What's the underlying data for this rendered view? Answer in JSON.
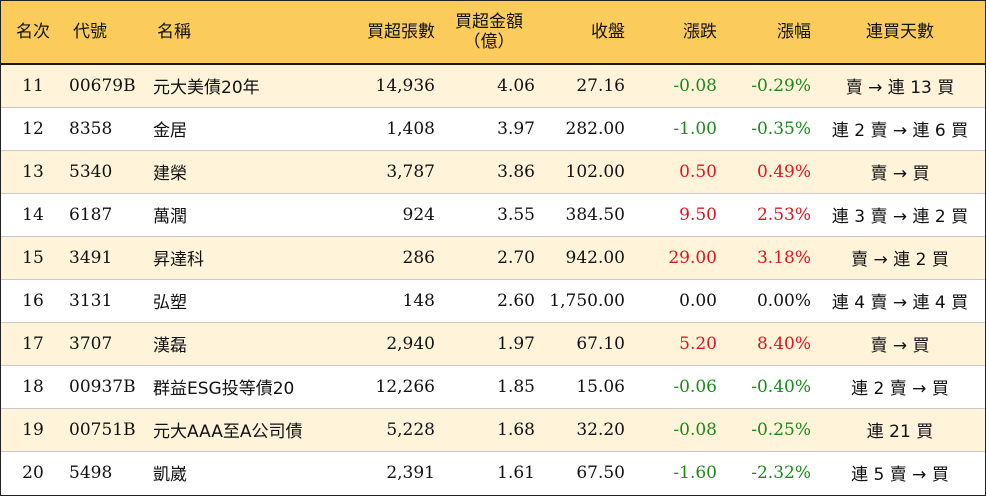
{
  "headers": {
    "rank": "名次",
    "code": "代號",
    "name": "名稱",
    "net_buy_lots": "買超張數",
    "net_buy_amount_line1": "買超金額",
    "net_buy_amount_line2": "（億）",
    "close": "收盤",
    "change": "漲跌",
    "change_pct": "漲幅",
    "consecutive_days": "連買天數"
  },
  "colors": {
    "header_bg": "#fbcc5c",
    "stripe_bg": "#fff4d9",
    "up": "#e0141e",
    "down": "#1a8a1a"
  },
  "rows": [
    {
      "rank": "11",
      "code": "00679B",
      "name": "元大美債20年",
      "lots": "14,936",
      "amount": "4.06",
      "close": "27.16",
      "change": "-0.08",
      "pct": "-0.29%",
      "days": "賣 → 連 13 買",
      "dir": "neg"
    },
    {
      "rank": "12",
      "code": "8358",
      "name": "金居",
      "lots": "1,408",
      "amount": "3.97",
      "close": "282.00",
      "change": "-1.00",
      "pct": "-0.35%",
      "days": "連 2 賣 → 連 6 買",
      "dir": "neg"
    },
    {
      "rank": "13",
      "code": "5340",
      "name": "建榮",
      "lots": "3,787",
      "amount": "3.86",
      "close": "102.00",
      "change": "0.50",
      "pct": "0.49%",
      "days": "賣 → 買",
      "dir": "pos"
    },
    {
      "rank": "14",
      "code": "6187",
      "name": "萬潤",
      "lots": "924",
      "amount": "3.55",
      "close": "384.50",
      "change": "9.50",
      "pct": "2.53%",
      "days": "連 3 賣 → 連 2 買",
      "dir": "pos"
    },
    {
      "rank": "15",
      "code": "3491",
      "name": "昇達科",
      "lots": "286",
      "amount": "2.70",
      "close": "942.00",
      "change": "29.00",
      "pct": "3.18%",
      "days": "賣 → 連 2 買",
      "dir": "pos"
    },
    {
      "rank": "16",
      "code": "3131",
      "name": "弘塑",
      "lots": "148",
      "amount": "2.60",
      "close": "1,750.00",
      "change": "0.00",
      "pct": "0.00%",
      "days": "連 4 賣 → 連 4 買",
      "dir": "flat"
    },
    {
      "rank": "17",
      "code": "3707",
      "name": "漢磊",
      "lots": "2,940",
      "amount": "1.97",
      "close": "67.10",
      "change": "5.20",
      "pct": "8.40%",
      "days": "賣 → 買",
      "dir": "pos"
    },
    {
      "rank": "18",
      "code": "00937B",
      "name": "群益ESG投等債20",
      "lots": "12,266",
      "amount": "1.85",
      "close": "15.06",
      "change": "-0.06",
      "pct": "-0.40%",
      "days": "連 2 賣 → 買",
      "dir": "neg"
    },
    {
      "rank": "19",
      "code": "00751B",
      "name": "元大AAA至A公司債",
      "lots": "5,228",
      "amount": "1.68",
      "close": "32.20",
      "change": "-0.08",
      "pct": "-0.25%",
      "days": "連 21 買",
      "dir": "neg"
    },
    {
      "rank": "20",
      "code": "5498",
      "name": "凱崴",
      "lots": "2,391",
      "amount": "1.61",
      "close": "67.50",
      "change": "-1.60",
      "pct": "-2.32%",
      "days": "連 5 賣 → 買",
      "dir": "neg"
    }
  ]
}
